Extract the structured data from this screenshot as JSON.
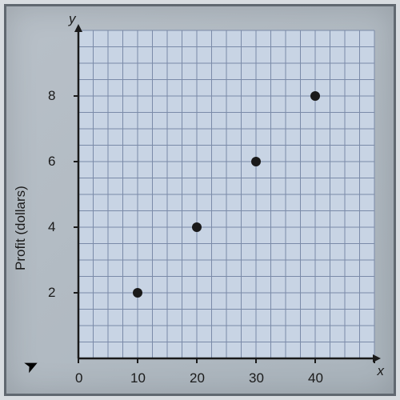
{
  "chart": {
    "type": "scatter",
    "y_axis_title": "Profit (dollars)",
    "x_axis_letter": "x",
    "y_axis_letter": "y",
    "points": [
      {
        "x": 10,
        "y": 2
      },
      {
        "x": 20,
        "y": 4
      },
      {
        "x": 30,
        "y": 6
      },
      {
        "x": 40,
        "y": 8
      }
    ],
    "x_tick_labels": [
      "0",
      "10",
      "20",
      "30",
      "40"
    ],
    "y_tick_labels": [
      "2",
      "4",
      "6",
      "8"
    ],
    "x_major_step": 10,
    "x_minor_step": 2.5,
    "y_major_step": 2,
    "y_minor_step": 0.5,
    "xlim": [
      0,
      50
    ],
    "ylim": [
      0,
      10
    ],
    "grid_color": "#7a8aa8",
    "axis_color": "#1a1a1a",
    "point_color": "#1a1a1a",
    "point_radius": 6,
    "background_color": "#c8d4e4",
    "label_fontsize": 17
  }
}
